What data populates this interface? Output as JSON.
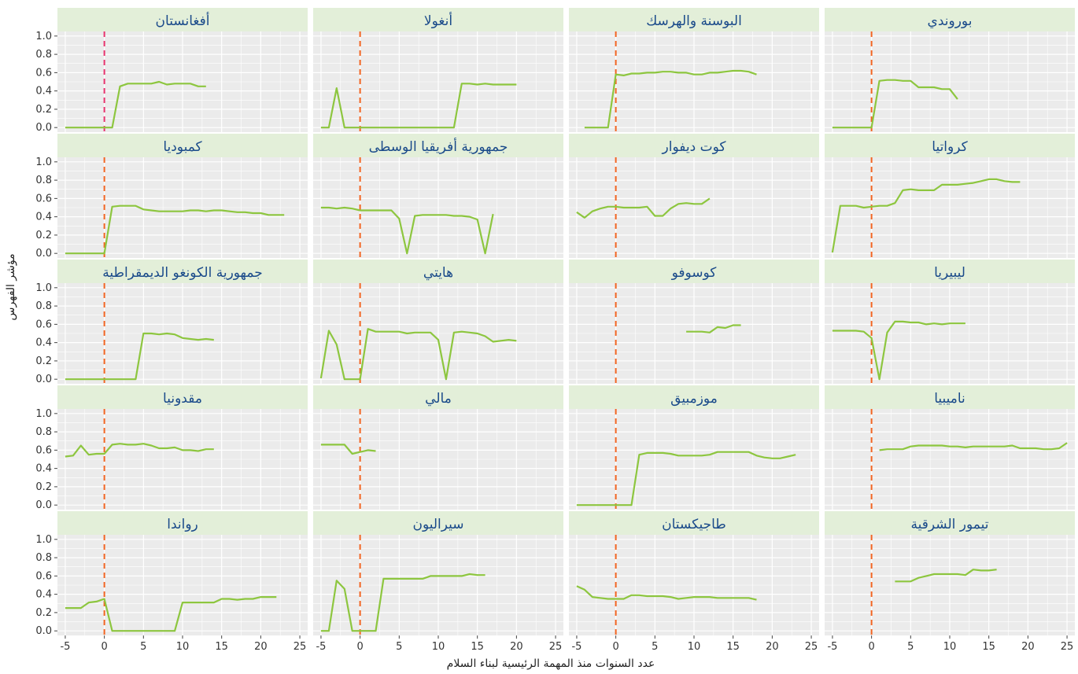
{
  "colors": {
    "line": "#8dc63f",
    "vline": "#f26522",
    "vline_first": "#e8336e",
    "strip": "#e3efd9",
    "strip_text": "#1a4a8a",
    "panel": "#ebebeb",
    "grid": "#ffffff"
  },
  "chart_data": {
    "type": "line",
    "xlabel": "عدد السنوات منذ المهمة الرئيسية لبناء السلام",
    "ylabel": "مؤشر الفهرس",
    "xlim": [
      -6,
      26
    ],
    "ylim": [
      -0.05,
      1.05
    ],
    "x_ticks": [
      -5,
      0,
      5,
      10,
      15,
      20,
      25
    ],
    "x_tick_labels": [
      "-5",
      "0",
      "5",
      "10",
      "15",
      "20",
      "25"
    ],
    "y_ticks": [
      0,
      0.2,
      0.4,
      0.6,
      0.8,
      1
    ],
    "y_tick_labels": [
      "0.0",
      "0.2",
      "0.4",
      "0.6",
      "0.8",
      "1.0"
    ],
    "reference_x": 0,
    "panels": [
      {
        "name": "أفغانستان",
        "x": [
          -5,
          -4,
          -3,
          -2,
          -1,
          0,
          1,
          2,
          3,
          4,
          5,
          6,
          7,
          8,
          9,
          10,
          11,
          12,
          13
        ],
        "values": [
          0,
          0,
          0,
          0,
          0,
          0,
          0,
          0.45,
          0.48,
          0.48,
          0.48,
          0.48,
          0.5,
          0.47,
          0.48,
          0.48,
          0.48,
          0.45,
          0.45
        ]
      },
      {
        "name": "أنغولا",
        "x": [
          -5,
          -4,
          -3,
          -2,
          -1,
          0,
          1,
          2,
          3,
          4,
          5,
          6,
          7,
          8,
          9,
          10,
          11,
          12,
          13,
          14,
          15,
          16,
          17,
          18,
          19,
          20
        ],
        "values": [
          0,
          0,
          0.43,
          0,
          0,
          0,
          0,
          0,
          0,
          0,
          0,
          0,
          0,
          0,
          0,
          0,
          0,
          0,
          0.48,
          0.48,
          0.47,
          0.48,
          0.47,
          0.47,
          0.47,
          0.47
        ]
      },
      {
        "name": "البوسنة والهرسك",
        "x": [
          -4,
          -3,
          -2,
          -1,
          0,
          1,
          2,
          3,
          4,
          5,
          6,
          7,
          8,
          9,
          10,
          11,
          12,
          13,
          14,
          15,
          16,
          17,
          18
        ],
        "values": [
          0,
          0,
          0,
          0,
          0.58,
          0.57,
          0.59,
          0.59,
          0.6,
          0.6,
          0.61,
          0.61,
          0.6,
          0.6,
          0.58,
          0.58,
          0.6,
          0.6,
          0.61,
          0.62,
          0.62,
          0.61,
          0.58
        ]
      },
      {
        "name": "بوروندي",
        "x": [
          -5,
          -4,
          -3,
          -2,
          -1,
          0,
          1,
          2,
          3,
          4,
          5,
          6,
          7,
          8,
          9,
          10,
          11
        ],
        "values": [
          0,
          0,
          0,
          0,
          0,
          0,
          0.51,
          0.52,
          0.52,
          0.51,
          0.51,
          0.44,
          0.44,
          0.44,
          0.42,
          0.42,
          0.31
        ]
      },
      {
        "name": "كمبوديا",
        "x": [
          -5,
          -4,
          -3,
          -2,
          -1,
          0,
          1,
          2,
          3,
          4,
          5,
          6,
          7,
          8,
          9,
          10,
          11,
          12,
          13,
          14,
          15,
          16,
          17,
          18,
          19,
          20,
          21,
          22,
          23
        ],
        "values": [
          0,
          0,
          0,
          0,
          0,
          0,
          0.51,
          0.52,
          0.52,
          0.52,
          0.48,
          0.47,
          0.46,
          0.46,
          0.46,
          0.46,
          0.47,
          0.47,
          0.46,
          0.47,
          0.47,
          0.46,
          0.45,
          0.45,
          0.44,
          0.44,
          0.42,
          0.42,
          0.42
        ]
      },
      {
        "name": "جمهورية أفريقيا الوسطى",
        "x": [
          -5,
          -4,
          -3,
          -2,
          -1,
          0,
          1,
          2,
          3,
          4,
          5,
          6,
          7,
          8,
          9,
          10,
          11,
          12,
          13,
          14,
          15,
          16,
          17
        ],
        "values": [
          0.5,
          0.5,
          0.49,
          0.5,
          0.49,
          0.47,
          0.47,
          0.47,
          0.47,
          0.47,
          0.38,
          0,
          0.41,
          0.42,
          0.42,
          0.42,
          0.42,
          0.41,
          0.41,
          0.4,
          0.37,
          0,
          0.43
        ]
      },
      {
        "name": "كوت ديفوار",
        "x": [
          -5,
          -4,
          -3,
          -2,
          -1,
          0,
          1,
          2,
          3,
          4,
          5,
          6,
          7,
          8,
          9,
          10,
          11,
          12
        ],
        "values": [
          0.45,
          0.39,
          0.46,
          0.49,
          0.51,
          0.51,
          0.5,
          0.5,
          0.5,
          0.51,
          0.41,
          0.41,
          0.49,
          0.54,
          0.55,
          0.54,
          0.54,
          0.6
        ]
      },
      {
        "name": "كرواتيا",
        "x": [
          -5,
          -4,
          -3,
          -2,
          -1,
          0,
          1,
          2,
          3,
          4,
          5,
          6,
          7,
          8,
          9,
          10,
          11,
          12,
          13,
          14,
          15,
          16,
          17,
          18,
          19
        ],
        "values": [
          0.01,
          0.52,
          0.52,
          0.52,
          0.5,
          0.51,
          0.52,
          0.52,
          0.55,
          0.69,
          0.7,
          0.69,
          0.69,
          0.69,
          0.75,
          0.75,
          0.75,
          0.76,
          0.77,
          0.79,
          0.81,
          0.81,
          0.79,
          0.78,
          0.78
        ]
      },
      {
        "name": "جمهورية الكونغو الديمقراطية",
        "x": [
          -5,
          -4,
          -3,
          -2,
          -1,
          0,
          1,
          2,
          3,
          4,
          5,
          6,
          7,
          8,
          9,
          10,
          11,
          12,
          13,
          14
        ],
        "values": [
          0,
          0,
          0,
          0,
          0,
          0,
          0,
          0,
          0,
          0,
          0.5,
          0.5,
          0.49,
          0.5,
          0.49,
          0.45,
          0.44,
          0.43,
          0.44,
          0.43
        ]
      },
      {
        "name": "هايتي",
        "x": [
          -5,
          -4,
          -3,
          -2,
          -1,
          0,
          1,
          2,
          3,
          4,
          5,
          6,
          7,
          8,
          9,
          10,
          11,
          12,
          13,
          14,
          15,
          16,
          17,
          18,
          19,
          20
        ],
        "values": [
          0.01,
          0.53,
          0.38,
          0,
          0,
          0,
          0.55,
          0.52,
          0.52,
          0.52,
          0.52,
          0.5,
          0.51,
          0.51,
          0.51,
          0.43,
          0,
          0.51,
          0.52,
          0.51,
          0.5,
          0.47,
          0.41,
          0.42,
          0.43,
          0.42
        ]
      },
      {
        "name": "كوسوفو",
        "x": [
          9,
          10,
          11,
          12,
          13,
          14,
          15,
          16
        ],
        "values": [
          0.52,
          0.52,
          0.52,
          0.51,
          0.57,
          0.56,
          0.59,
          0.59
        ]
      },
      {
        "name": "ليبيريا",
        "x": [
          -5,
          -4,
          -3,
          -2,
          -1,
          0,
          1,
          2,
          3,
          4,
          5,
          6,
          7,
          8,
          9,
          10,
          11,
          12
        ],
        "values": [
          0.53,
          0.53,
          0.53,
          0.53,
          0.52,
          0.45,
          0,
          0.51,
          0.63,
          0.63,
          0.62,
          0.62,
          0.6,
          0.61,
          0.6,
          0.61,
          0.61,
          0.61
        ]
      },
      {
        "name": "مقدونيا",
        "x": [
          -5,
          -4,
          -3,
          -2,
          -1,
          0,
          1,
          2,
          3,
          4,
          5,
          6,
          7,
          8,
          9,
          10,
          11,
          12,
          13,
          14
        ],
        "values": [
          0.53,
          0.54,
          0.65,
          0.55,
          0.56,
          0.56,
          0.66,
          0.67,
          0.66,
          0.66,
          0.67,
          0.65,
          0.62,
          0.62,
          0.63,
          0.6,
          0.6,
          0.59,
          0.61,
          0.61
        ]
      },
      {
        "name": "مالي",
        "x": [
          -5,
          -4,
          -3,
          -2,
          -1,
          0,
          1,
          2
        ],
        "values": [
          0.66,
          0.66,
          0.66,
          0.66,
          0.56,
          0.58,
          0.6,
          0.59
        ]
      },
      {
        "name": "موزمبيق",
        "x": [
          -5,
          -4,
          -3,
          -2,
          -1,
          0,
          1,
          2,
          3,
          4,
          5,
          6,
          7,
          8,
          9,
          10,
          11,
          12,
          13,
          14,
          15,
          16,
          17,
          18,
          19,
          20,
          21,
          22,
          23
        ],
        "values": [
          0,
          0,
          0,
          0,
          0,
          0,
          0,
          0,
          0.55,
          0.57,
          0.57,
          0.57,
          0.56,
          0.54,
          0.54,
          0.54,
          0.54,
          0.55,
          0.58,
          0.58,
          0.58,
          0.58,
          0.58,
          0.54,
          0.52,
          0.51,
          0.51,
          0.53,
          0.55
        ]
      },
      {
        "name": "ناميبيا",
        "x": [
          1,
          2,
          3,
          4,
          5,
          6,
          7,
          8,
          9,
          10,
          11,
          12,
          13,
          14,
          15,
          16,
          17,
          18,
          19,
          20,
          21,
          22,
          23,
          24,
          25
        ],
        "values": [
          0.6,
          0.61,
          0.61,
          0.61,
          0.64,
          0.65,
          0.65,
          0.65,
          0.65,
          0.64,
          0.64,
          0.63,
          0.64,
          0.64,
          0.64,
          0.64,
          0.64,
          0.65,
          0.62,
          0.62,
          0.62,
          0.61,
          0.61,
          0.62,
          0.68
        ]
      },
      {
        "name": "رواندا",
        "x": [
          -5,
          -4,
          -3,
          -2,
          -1,
          0,
          1,
          2,
          3,
          4,
          5,
          6,
          7,
          8,
          9,
          10,
          11,
          12,
          13,
          14,
          15,
          16,
          17,
          18,
          19,
          20,
          21,
          22
        ],
        "values": [
          0.25,
          0.25,
          0.25,
          0.31,
          0.32,
          0.35,
          0,
          0,
          0,
          0,
          0,
          0,
          0,
          0,
          0,
          0.31,
          0.31,
          0.31,
          0.31,
          0.31,
          0.35,
          0.35,
          0.34,
          0.35,
          0.35,
          0.37,
          0.37,
          0.37
        ]
      },
      {
        "name": "سيراليون",
        "x": [
          -5,
          -4,
          -3,
          -2,
          -1,
          0,
          1,
          2,
          3,
          4,
          5,
          6,
          7,
          8,
          9,
          10,
          11,
          12,
          13,
          14,
          15,
          16
        ],
        "values": [
          0,
          0,
          0.55,
          0.46,
          0,
          0,
          0,
          0,
          0.57,
          0.57,
          0.57,
          0.57,
          0.57,
          0.57,
          0.6,
          0.6,
          0.6,
          0.6,
          0.6,
          0.62,
          0.61,
          0.61
        ]
      },
      {
        "name": "طاجيكستان",
        "x": [
          -5,
          -4,
          -3,
          -2,
          -1,
          0,
          1,
          2,
          3,
          4,
          5,
          6,
          7,
          8,
          9,
          10,
          11,
          12,
          13,
          14,
          15,
          16,
          17,
          18
        ],
        "values": [
          0.49,
          0.45,
          0.37,
          0.36,
          0.35,
          0.35,
          0.35,
          0.39,
          0.39,
          0.38,
          0.38,
          0.38,
          0.37,
          0.35,
          0.36,
          0.37,
          0.37,
          0.37,
          0.36,
          0.36,
          0.36,
          0.36,
          0.36,
          0.34
        ]
      },
      {
        "name": "تيمور الشرقية",
        "x": [
          3,
          4,
          5,
          6,
          7,
          8,
          9,
          10,
          11,
          12,
          13,
          14,
          15,
          16
        ],
        "values": [
          0.54,
          0.54,
          0.54,
          0.58,
          0.6,
          0.62,
          0.62,
          0.62,
          0.62,
          0.61,
          0.67,
          0.66,
          0.66,
          0.67
        ]
      }
    ]
  }
}
